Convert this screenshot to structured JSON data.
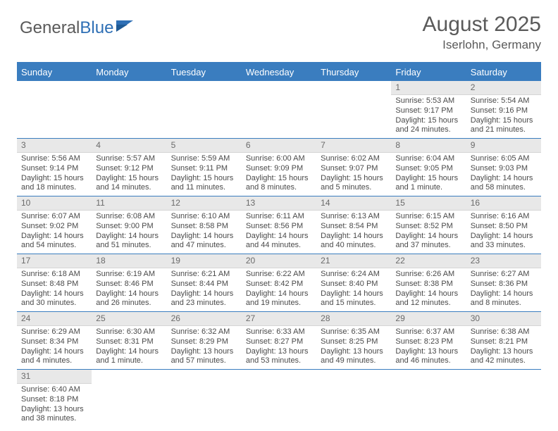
{
  "logo": {
    "text1": "General",
    "text2": "Blue"
  },
  "title": "August 2025",
  "location": "Iserlohn, Germany",
  "dayNames": [
    "Sunday",
    "Monday",
    "Tuesday",
    "Wednesday",
    "Thursday",
    "Friday",
    "Saturday"
  ],
  "colors": {
    "headerBlue": "#3a7dbf",
    "dayBg": "#e8e8e8",
    "text": "#4a4a4a"
  },
  "weeks": [
    [
      {
        "n": "",
        "sr": "",
        "ss": "",
        "dl": ""
      },
      {
        "n": "",
        "sr": "",
        "ss": "",
        "dl": ""
      },
      {
        "n": "",
        "sr": "",
        "ss": "",
        "dl": ""
      },
      {
        "n": "",
        "sr": "",
        "ss": "",
        "dl": ""
      },
      {
        "n": "",
        "sr": "",
        "ss": "",
        "dl": ""
      },
      {
        "n": "1",
        "sr": "Sunrise: 5:53 AM",
        "ss": "Sunset: 9:17 PM",
        "dl": "Daylight: 15 hours and 24 minutes."
      },
      {
        "n": "2",
        "sr": "Sunrise: 5:54 AM",
        "ss": "Sunset: 9:16 PM",
        "dl": "Daylight: 15 hours and 21 minutes."
      }
    ],
    [
      {
        "n": "3",
        "sr": "Sunrise: 5:56 AM",
        "ss": "Sunset: 9:14 PM",
        "dl": "Daylight: 15 hours and 18 minutes."
      },
      {
        "n": "4",
        "sr": "Sunrise: 5:57 AM",
        "ss": "Sunset: 9:12 PM",
        "dl": "Daylight: 15 hours and 14 minutes."
      },
      {
        "n": "5",
        "sr": "Sunrise: 5:59 AM",
        "ss": "Sunset: 9:11 PM",
        "dl": "Daylight: 15 hours and 11 minutes."
      },
      {
        "n": "6",
        "sr": "Sunrise: 6:00 AM",
        "ss": "Sunset: 9:09 PM",
        "dl": "Daylight: 15 hours and 8 minutes."
      },
      {
        "n": "7",
        "sr": "Sunrise: 6:02 AM",
        "ss": "Sunset: 9:07 PM",
        "dl": "Daylight: 15 hours and 5 minutes."
      },
      {
        "n": "8",
        "sr": "Sunrise: 6:04 AM",
        "ss": "Sunset: 9:05 PM",
        "dl": "Daylight: 15 hours and 1 minute."
      },
      {
        "n": "9",
        "sr": "Sunrise: 6:05 AM",
        "ss": "Sunset: 9:03 PM",
        "dl": "Daylight: 14 hours and 58 minutes."
      }
    ],
    [
      {
        "n": "10",
        "sr": "Sunrise: 6:07 AM",
        "ss": "Sunset: 9:02 PM",
        "dl": "Daylight: 14 hours and 54 minutes."
      },
      {
        "n": "11",
        "sr": "Sunrise: 6:08 AM",
        "ss": "Sunset: 9:00 PM",
        "dl": "Daylight: 14 hours and 51 minutes."
      },
      {
        "n": "12",
        "sr": "Sunrise: 6:10 AM",
        "ss": "Sunset: 8:58 PM",
        "dl": "Daylight: 14 hours and 47 minutes."
      },
      {
        "n": "13",
        "sr": "Sunrise: 6:11 AM",
        "ss": "Sunset: 8:56 PM",
        "dl": "Daylight: 14 hours and 44 minutes."
      },
      {
        "n": "14",
        "sr": "Sunrise: 6:13 AM",
        "ss": "Sunset: 8:54 PM",
        "dl": "Daylight: 14 hours and 40 minutes."
      },
      {
        "n": "15",
        "sr": "Sunrise: 6:15 AM",
        "ss": "Sunset: 8:52 PM",
        "dl": "Daylight: 14 hours and 37 minutes."
      },
      {
        "n": "16",
        "sr": "Sunrise: 6:16 AM",
        "ss": "Sunset: 8:50 PM",
        "dl": "Daylight: 14 hours and 33 minutes."
      }
    ],
    [
      {
        "n": "17",
        "sr": "Sunrise: 6:18 AM",
        "ss": "Sunset: 8:48 PM",
        "dl": "Daylight: 14 hours and 30 minutes."
      },
      {
        "n": "18",
        "sr": "Sunrise: 6:19 AM",
        "ss": "Sunset: 8:46 PM",
        "dl": "Daylight: 14 hours and 26 minutes."
      },
      {
        "n": "19",
        "sr": "Sunrise: 6:21 AM",
        "ss": "Sunset: 8:44 PM",
        "dl": "Daylight: 14 hours and 23 minutes."
      },
      {
        "n": "20",
        "sr": "Sunrise: 6:22 AM",
        "ss": "Sunset: 8:42 PM",
        "dl": "Daylight: 14 hours and 19 minutes."
      },
      {
        "n": "21",
        "sr": "Sunrise: 6:24 AM",
        "ss": "Sunset: 8:40 PM",
        "dl": "Daylight: 14 hours and 15 minutes."
      },
      {
        "n": "22",
        "sr": "Sunrise: 6:26 AM",
        "ss": "Sunset: 8:38 PM",
        "dl": "Daylight: 14 hours and 12 minutes."
      },
      {
        "n": "23",
        "sr": "Sunrise: 6:27 AM",
        "ss": "Sunset: 8:36 PM",
        "dl": "Daylight: 14 hours and 8 minutes."
      }
    ],
    [
      {
        "n": "24",
        "sr": "Sunrise: 6:29 AM",
        "ss": "Sunset: 8:34 PM",
        "dl": "Daylight: 14 hours and 4 minutes."
      },
      {
        "n": "25",
        "sr": "Sunrise: 6:30 AM",
        "ss": "Sunset: 8:31 PM",
        "dl": "Daylight: 14 hours and 1 minute."
      },
      {
        "n": "26",
        "sr": "Sunrise: 6:32 AM",
        "ss": "Sunset: 8:29 PM",
        "dl": "Daylight: 13 hours and 57 minutes."
      },
      {
        "n": "27",
        "sr": "Sunrise: 6:33 AM",
        "ss": "Sunset: 8:27 PM",
        "dl": "Daylight: 13 hours and 53 minutes."
      },
      {
        "n": "28",
        "sr": "Sunrise: 6:35 AM",
        "ss": "Sunset: 8:25 PM",
        "dl": "Daylight: 13 hours and 49 minutes."
      },
      {
        "n": "29",
        "sr": "Sunrise: 6:37 AM",
        "ss": "Sunset: 8:23 PM",
        "dl": "Daylight: 13 hours and 46 minutes."
      },
      {
        "n": "30",
        "sr": "Sunrise: 6:38 AM",
        "ss": "Sunset: 8:21 PM",
        "dl": "Daylight: 13 hours and 42 minutes."
      }
    ],
    [
      {
        "n": "31",
        "sr": "Sunrise: 6:40 AM",
        "ss": "Sunset: 8:18 PM",
        "dl": "Daylight: 13 hours and 38 minutes."
      },
      {
        "n": "",
        "sr": "",
        "ss": "",
        "dl": ""
      },
      {
        "n": "",
        "sr": "",
        "ss": "",
        "dl": ""
      },
      {
        "n": "",
        "sr": "",
        "ss": "",
        "dl": ""
      },
      {
        "n": "",
        "sr": "",
        "ss": "",
        "dl": ""
      },
      {
        "n": "",
        "sr": "",
        "ss": "",
        "dl": ""
      },
      {
        "n": "",
        "sr": "",
        "ss": "",
        "dl": ""
      }
    ]
  ]
}
